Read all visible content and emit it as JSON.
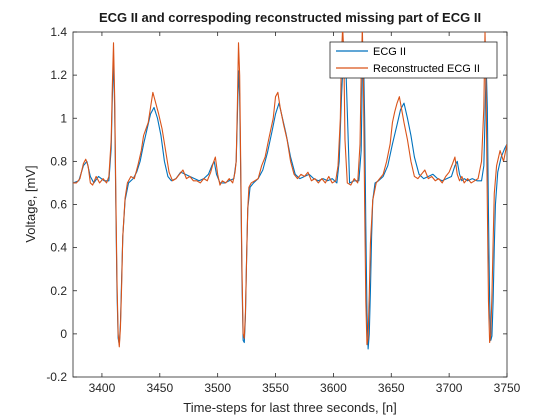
{
  "chart_data": {
    "type": "line",
    "title": "ECG II and correspoding reconstructed missing part of ECG II",
    "xlabel": "Time-steps for last three seconds, [n]",
    "ylabel": "Voltage, [mV]",
    "xlim": [
      3375,
      3750
    ],
    "ylim": [
      -0.2,
      1.4
    ],
    "x_ticks": [
      3400,
      3450,
      3500,
      3550,
      3600,
      3650,
      3700,
      3750
    ],
    "y_ticks": [
      -0.2,
      0,
      0.2,
      0.4,
      0.6,
      0.8,
      1,
      1.2,
      1.4
    ],
    "x_tick_labels": [
      "3400",
      "3450",
      "3500",
      "3550",
      "3600",
      "3650",
      "3700",
      "3750"
    ],
    "y_tick_labels": [
      "-0.2",
      "0",
      "0.2",
      "0.4",
      "0.6",
      "0.8",
      "1",
      "1.2",
      "1.4"
    ],
    "legend_position": "top-right",
    "grid": false,
    "series": [
      {
        "name": "ECG II",
        "color": "#0072bd",
        "x": [
          3375,
          3380,
          3384,
          3387,
          3390,
          3393,
          3397,
          3402,
          3406,
          3408,
          3409,
          3410,
          3411,
          3412,
          3413,
          3414,
          3415,
          3416,
          3417,
          3418,
          3420,
          3423,
          3427,
          3430,
          3433,
          3436,
          3439,
          3442,
          3445,
          3448,
          3451,
          3454,
          3457,
          3460,
          3464,
          3468,
          3472,
          3476,
          3480,
          3484,
          3488,
          3492,
          3495,
          3497,
          3499,
          3502,
          3506,
          3510,
          3514,
          3516,
          3517,
          3518,
          3519,
          3520,
          3521,
          3522,
          3523,
          3524,
          3525,
          3526,
          3528,
          3531,
          3535,
          3539,
          3543,
          3547,
          3550,
          3553,
          3556,
          3559,
          3563,
          3567,
          3571,
          3575,
          3579,
          3583,
          3587,
          3591,
          3595,
          3599,
          3603,
          3605,
          3607,
          3609,
          3611,
          3614,
          3618,
          3622,
          3624,
          3625,
          3626,
          3627,
          3628,
          3629,
          3630,
          3631,
          3632,
          3633,
          3634,
          3636,
          3639,
          3643,
          3647,
          3651,
          3655,
          3658,
          3661,
          3664,
          3667,
          3670,
          3674,
          3678,
          3682,
          3686,
          3690,
          3694,
          3698,
          3702,
          3705,
          3707,
          3709,
          3711,
          3713,
          3716,
          3720,
          3724,
          3728,
          3730,
          3731,
          3732,
          3733,
          3734,
          3735,
          3736,
          3737,
          3738,
          3739,
          3740,
          3742,
          3745,
          3748,
          3750
        ],
        "y": [
          0.7,
          0.71,
          0.78,
          0.8,
          0.73,
          0.7,
          0.73,
          0.71,
          0.71,
          0.86,
          1.1,
          1.27,
          1.05,
          0.6,
          0.2,
          -0.02,
          -0.05,
          0.05,
          0.25,
          0.45,
          0.62,
          0.7,
          0.72,
          0.75,
          0.8,
          0.88,
          0.95,
          1.02,
          1.05,
          1.0,
          0.92,
          0.8,
          0.73,
          0.71,
          0.72,
          0.75,
          0.74,
          0.73,
          0.72,
          0.71,
          0.72,
          0.74,
          0.78,
          0.8,
          0.74,
          0.7,
          0.7,
          0.71,
          0.72,
          0.8,
          1.0,
          1.22,
          1.1,
          0.7,
          0.25,
          -0.03,
          -0.04,
          0.08,
          0.35,
          0.58,
          0.68,
          0.7,
          0.72,
          0.76,
          0.84,
          0.94,
          1.02,
          1.07,
          1.0,
          0.93,
          0.82,
          0.74,
          0.72,
          0.73,
          0.74,
          0.72,
          0.71,
          0.72,
          0.71,
          0.72,
          0.7,
          0.8,
          1.1,
          1.33,
          1.2,
          0.7,
          0.71,
          0.71,
          0.85,
          1.2,
          1.3,
          1.0,
          0.5,
          0.1,
          -0.07,
          0.0,
          0.2,
          0.45,
          0.62,
          0.7,
          0.71,
          0.73,
          0.78,
          0.88,
          0.97,
          1.04,
          1.07,
          1.0,
          0.92,
          0.82,
          0.74,
          0.72,
          0.73,
          0.74,
          0.72,
          0.71,
          0.72,
          0.73,
          0.78,
          0.8,
          0.74,
          0.71,
          0.72,
          0.71,
          0.72,
          0.71,
          0.71,
          0.78,
          1.0,
          1.25,
          1.05,
          0.55,
          0.15,
          -0.03,
          -0.01,
          0.15,
          0.4,
          0.6,
          0.75,
          0.82,
          0.86,
          0.88
        ]
      },
      {
        "name": "Reconstructed ECG II",
        "color": "#d95319",
        "x": [
          3375,
          3378,
          3381,
          3384,
          3386,
          3388,
          3390,
          3392,
          3395,
          3398,
          3401,
          3404,
          3406,
          3408,
          3409,
          3410,
          3411,
          3412,
          3413,
          3414,
          3415,
          3416,
          3417,
          3418,
          3420,
          3422,
          3425,
          3428,
          3431,
          3434,
          3436,
          3438,
          3440,
          3442,
          3444,
          3446,
          3449,
          3452,
          3455,
          3458,
          3461,
          3464,
          3467,
          3470,
          3473,
          3476,
          3479,
          3482,
          3485,
          3488,
          3491,
          3494,
          3496,
          3498,
          3500,
          3502,
          3504,
          3507,
          3510,
          3513,
          3515,
          3516,
          3517,
          3518,
          3519,
          3520,
          3521,
          3522,
          3523,
          3524,
          3525,
          3526,
          3527,
          3529,
          3532,
          3535,
          3538,
          3541,
          3544,
          3546,
          3548,
          3550,
          3552,
          3554,
          3557,
          3560,
          3563,
          3566,
          3569,
          3572,
          3575,
          3578,
          3581,
          3584,
          3587,
          3590,
          3593,
          3596,
          3599,
          3602,
          3604,
          3606,
          3607,
          3608,
          3609,
          3610,
          3612,
          3615,
          3618,
          3621,
          3623,
          3624,
          3625,
          3626,
          3627,
          3628,
          3629,
          3630,
          3631,
          3632,
          3634,
          3637,
          3640,
          3643,
          3646,
          3649,
          3651,
          3653,
          3655,
          3657,
          3659,
          3661,
          3664,
          3667,
          3670,
          3673,
          3676,
          3679,
          3682,
          3685,
          3688,
          3691,
          3694,
          3697,
          3700,
          3703,
          3705,
          3707,
          3709,
          3711,
          3713,
          3716,
          3719,
          3722,
          3725,
          3728,
          3730,
          3731,
          3732,
          3733,
          3734,
          3735,
          3736,
          3737,
          3738,
          3739,
          3741,
          3744,
          3747,
          3750
        ],
        "y": [
          0.7,
          0.7,
          0.72,
          0.79,
          0.81,
          0.78,
          0.7,
          0.69,
          0.73,
          0.7,
          0.72,
          0.7,
          0.73,
          0.9,
          1.15,
          1.35,
          1.1,
          0.65,
          0.25,
          0.0,
          -0.06,
          0.03,
          0.22,
          0.45,
          0.63,
          0.7,
          0.73,
          0.72,
          0.78,
          0.85,
          0.92,
          0.95,
          0.98,
          1.05,
          1.12,
          1.08,
          1.02,
          0.95,
          0.85,
          0.75,
          0.71,
          0.72,
          0.74,
          0.76,
          0.72,
          0.73,
          0.71,
          0.71,
          0.7,
          0.72,
          0.71,
          0.75,
          0.79,
          0.82,
          0.74,
          0.69,
          0.71,
          0.7,
          0.72,
          0.7,
          0.75,
          0.8,
          1.05,
          1.35,
          1.2,
          0.75,
          0.3,
          0.0,
          -0.02,
          0.1,
          0.35,
          0.58,
          0.68,
          0.7,
          0.71,
          0.72,
          0.78,
          0.82,
          0.9,
          0.95,
          1.0,
          1.1,
          1.12,
          1.05,
          0.97,
          0.9,
          0.8,
          0.74,
          0.72,
          0.74,
          0.73,
          0.75,
          0.71,
          0.72,
          0.7,
          0.72,
          0.7,
          0.73,
          0.7,
          0.71,
          0.78,
          1.0,
          1.3,
          1.42,
          1.3,
          0.9,
          0.7,
          0.69,
          0.72,
          0.7,
          0.88,
          1.2,
          1.42,
          1.15,
          0.6,
          0.15,
          -0.05,
          -0.02,
          0.18,
          0.42,
          0.62,
          0.7,
          0.72,
          0.74,
          0.8,
          0.88,
          0.98,
          1.03,
          1.07,
          1.1,
          1.04,
          0.98,
          0.9,
          0.8,
          0.73,
          0.72,
          0.74,
          0.76,
          0.72,
          0.73,
          0.71,
          0.72,
          0.7,
          0.73,
          0.75,
          0.79,
          0.82,
          0.74,
          0.71,
          0.73,
          0.7,
          0.72,
          0.7,
          0.71,
          0.72,
          0.8,
          1.05,
          1.4,
          1.1,
          0.6,
          0.15,
          -0.04,
          0.0,
          0.18,
          0.42,
          0.65,
          0.78,
          0.85,
          0.8,
          0.88
        ]
      }
    ]
  }
}
